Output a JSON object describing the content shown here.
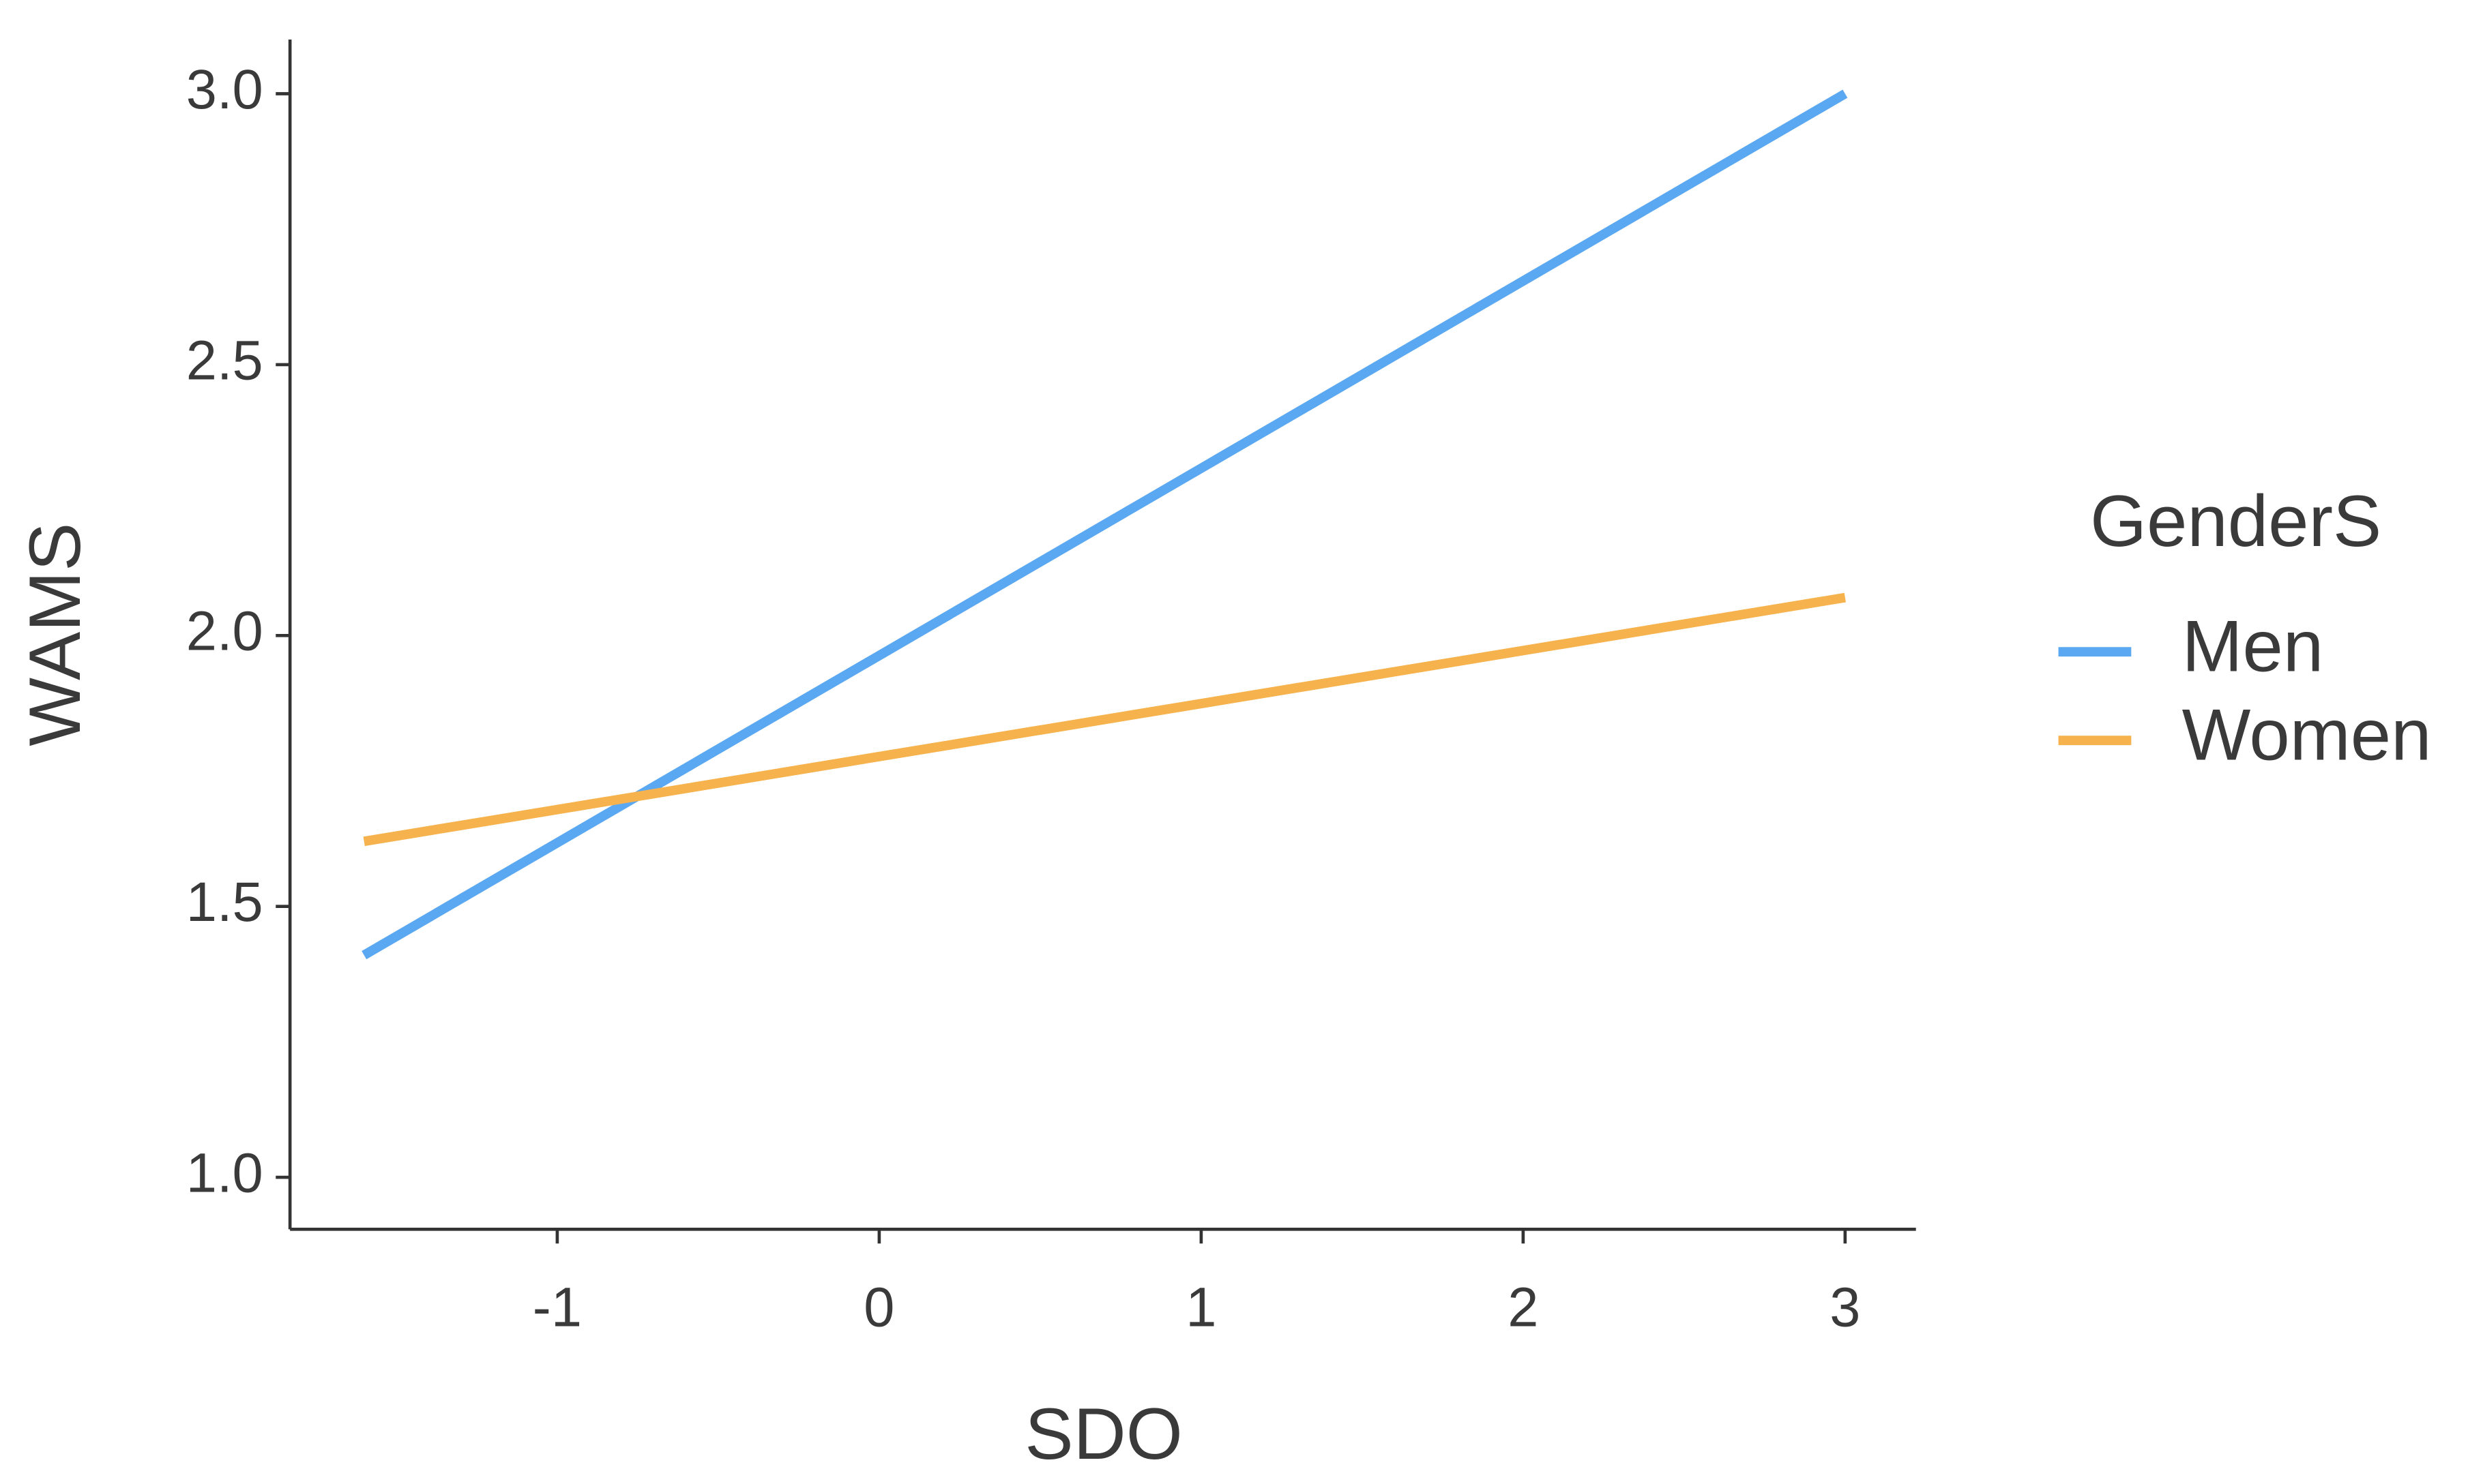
{
  "chart_data": {
    "type": "line",
    "x_label": "SDO",
    "y_label": "WAMS",
    "legend_title": "GenderS",
    "legend": "right",
    "x": [
      -1.6,
      3
    ],
    "series": [
      {
        "name": "Men",
        "color": "#5aa8f2",
        "values": [
          1.41,
          3.0
        ]
      },
      {
        "name": "Women",
        "color": "#f6b24c",
        "values": [
          1.62,
          2.07
        ]
      }
    ],
    "xlim": [
      -1.83,
      3.22
    ],
    "xticks": [
      -1,
      0,
      1,
      2,
      3
    ],
    "ylim": [
      0.904,
      3.1
    ],
    "yticks": [
      {
        "value": 1,
        "label": "1.0"
      },
      1.5,
      {
        "value": 2,
        "label": "2.0"
      },
      2.5,
      {
        "value": 3,
        "label": "3.0"
      }
    ],
    "grid": false
  }
}
